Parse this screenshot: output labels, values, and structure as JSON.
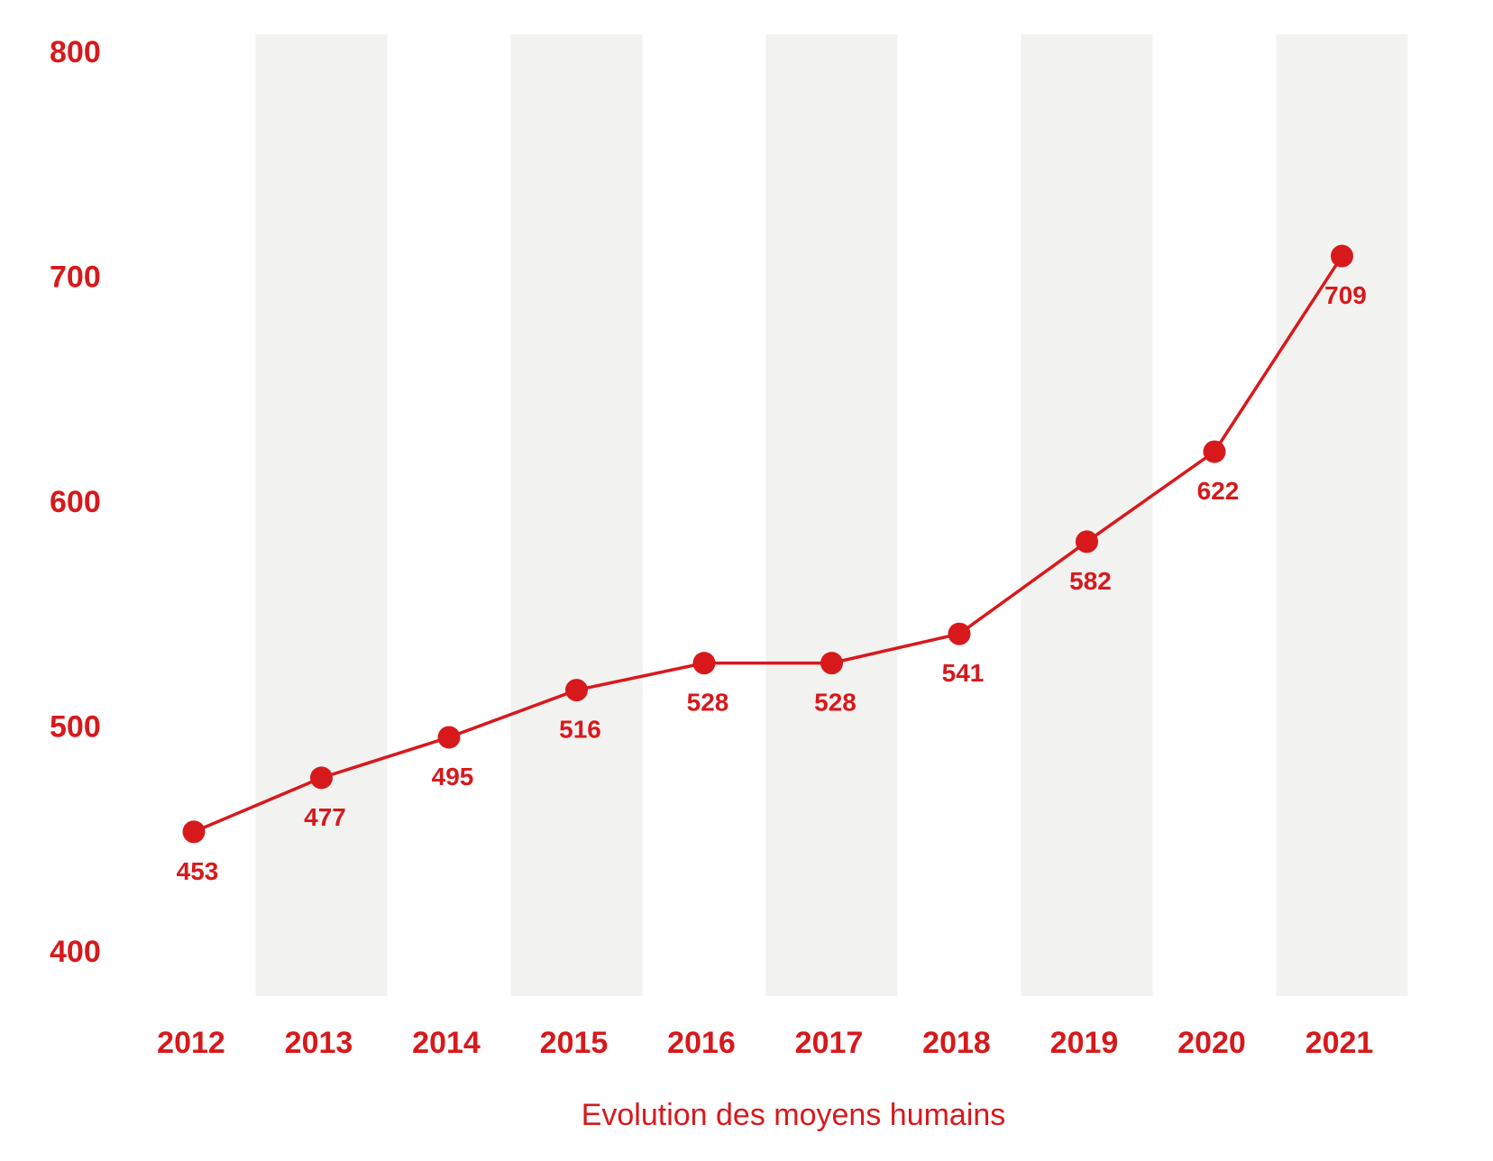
{
  "chart_data": {
    "type": "line",
    "title": "",
    "xlabel": "Evolution des moyens humains",
    "ylabel": "",
    "categories": [
      "2012",
      "2013",
      "2014",
      "2015",
      "2016",
      "2017",
      "2018",
      "2019",
      "2020",
      "2021"
    ],
    "series": [
      {
        "values": [
          453,
          477,
          495,
          516,
          528,
          528,
          541,
          582,
          622,
          709
        ]
      }
    ],
    "ylim": [
      400,
      800
    ],
    "yticks": [
      "800",
      "700",
      "600",
      "500",
      "400"
    ],
    "value_labels": [
      "453",
      "477",
      "495",
      "516",
      "528",
      "528",
      "541",
      "582",
      "622",
      "709"
    ],
    "grid": false,
    "legend": "none",
    "alternating_column_bands": true,
    "colors": {
      "accent": "#d7191c",
      "band": "#f2f2f0",
      "background": "#ffffff"
    }
  }
}
